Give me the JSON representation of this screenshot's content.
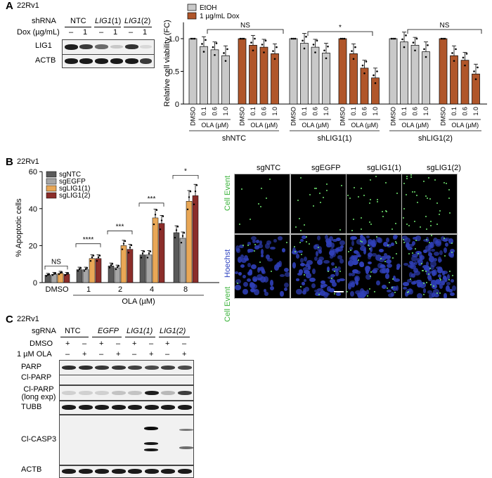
{
  "panel_a": {
    "label": "A",
    "cell_line": "22Rv1",
    "blot": {
      "shrna_label": "shRNA",
      "groups": [
        "NTC",
        "LIG1",
        "LIG1"
      ],
      "group_suffix": [
        "",
        "(1)",
        "(2)"
      ],
      "dox_label": "Dox (µg/mL)",
      "dox_values": [
        "–",
        "1",
        "–",
        "1",
        "–",
        "1"
      ],
      "rows": [
        "LIG1",
        "ACTB"
      ]
    }
  },
  "panel_b": {
    "label": "B",
    "cell_line": "22Rv1",
    "micro_columns": [
      "sgNTC",
      "sgEGFP",
      "sgLIG1(1)",
      "sgLIG1(2)"
    ],
    "micro_row_labels": [
      "Cell Event",
      "Hoechst",
      "Cell Event"
    ]
  },
  "panel_c": {
    "label": "C",
    "cell_line": "22Rv1",
    "sgrna_label": "sgRNA",
    "groups": [
      "NTC",
      "EGFP",
      "LIG1(1)",
      "LIG1(2)"
    ],
    "dmso_label": "DMSO",
    "ola_label": "1 µM OLA",
    "dmso_marks": [
      "+",
      "–",
      "+",
      "–",
      "+",
      "–",
      "+",
      "–"
    ],
    "ola_marks": [
      "–",
      "+",
      "–",
      "+",
      "–",
      "+",
      "–",
      "+"
    ],
    "rows": [
      "PARP",
      "Cl-PARP",
      "Cl-PARP (long exp)",
      "TUBB",
      "Cl-CASP3",
      "ACTB"
    ]
  },
  "chart_data": [
    {
      "type": "bar",
      "title": "",
      "ylabel": "Relative cell viability (FC)",
      "ylim": [
        0,
        1.25
      ],
      "yticks": [
        0,
        0.5,
        1.0
      ],
      "legend": [
        "EtOH",
        "1 µg/mL Dox"
      ],
      "legend_position": "top-left",
      "colors": {
        "EtOH": "#c9c9c9",
        "1 µg/mL Dox": "#b0562a"
      },
      "x_tick_labels": [
        "DMSO",
        "0.1",
        "0.6",
        "1.0"
      ],
      "x_group_label": "OLA (µM)",
      "shRNA_groups": [
        "shNTC",
        "shLIG1(1)",
        "shLIG1(2)"
      ],
      "series": [
        {
          "name": "shNTC EtOH",
          "values": [
            1.0,
            0.88,
            0.83,
            0.74
          ]
        },
        {
          "name": "shNTC 1 µg/mL Dox",
          "values": [
            1.0,
            0.9,
            0.87,
            0.77
          ]
        },
        {
          "name": "shLIG1(1) EtOH",
          "values": [
            1.0,
            0.93,
            0.87,
            0.78
          ]
        },
        {
          "name": "shLIG1(1) 1 µg/mL Dox",
          "values": [
            1.0,
            0.77,
            0.55,
            0.4
          ]
        },
        {
          "name": "shLIG1(2) EtOH",
          "values": [
            1.0,
            0.95,
            0.9,
            0.8
          ]
        },
        {
          "name": "shLIG1(2) 1 µg/mL Dox",
          "values": [
            1.0,
            0.74,
            0.67,
            0.46
          ]
        }
      ],
      "annotations": [
        "NS",
        "*",
        "NS"
      ]
    },
    {
      "type": "bar",
      "title": "",
      "ylabel": "% Apoptotic cells",
      "xlabel": "OLA (µM)",
      "ylim": [
        0,
        60
      ],
      "yticks": [
        0,
        20,
        40,
        60
      ],
      "categories": [
        "DMSO",
        "1",
        "2",
        "4",
        "8"
      ],
      "legend_position": "top-left",
      "series": [
        {
          "name": "sgNTC",
          "color": "#5a5a5a",
          "values": [
            4,
            7,
            9,
            15,
            27
          ]
        },
        {
          "name": "sgEGFP",
          "color": "#a6a6a6",
          "values": [
            4.5,
            7,
            8,
            15,
            24
          ]
        },
        {
          "name": "sgLIG1(1)",
          "color": "#e9a756",
          "values": [
            5,
            13,
            20,
            35,
            44
          ]
        },
        {
          "name": "sgLIG1(2)",
          "color": "#8b2d2a",
          "values": [
            4.5,
            13,
            18,
            32,
            47
          ]
        }
      ],
      "annotations": [
        "NS",
        "****",
        "***",
        "***",
        "*"
      ]
    }
  ]
}
